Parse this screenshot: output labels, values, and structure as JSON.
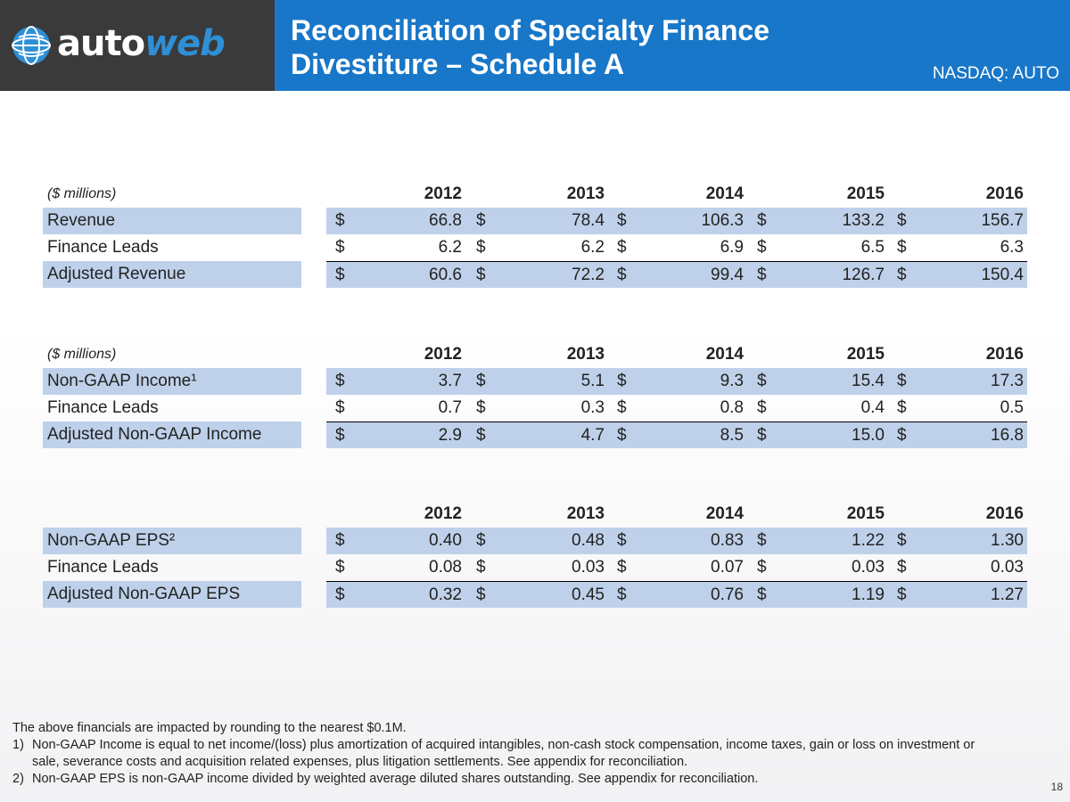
{
  "header": {
    "logo_auto": "auto",
    "logo_web": "web",
    "title_line1": "Reconciliation of Specialty Finance",
    "title_line2": "Divestiture – Schedule A",
    "ticker": "NASDAQ: AUTO"
  },
  "colors": {
    "header_dark": "#3a3a3a",
    "header_blue": "#1877c8",
    "row_shade": "#bfd1ea",
    "logo_accent": "#2e8fd6"
  },
  "years": [
    "2012",
    "2013",
    "2014",
    "2015",
    "2016"
  ],
  "currency_symbol": "$",
  "table1": {
    "unit": "($ millions)",
    "rows": [
      {
        "label": "Revenue",
        "values": [
          "66.8",
          "78.4",
          "106.3",
          "133.2",
          "156.7"
        ]
      },
      {
        "label": "Finance Leads",
        "values": [
          "6.2",
          "6.2",
          "6.9",
          "6.5",
          "6.3"
        ]
      },
      {
        "label": "Adjusted Revenue",
        "values": [
          "60.6",
          "72.2",
          "99.4",
          "126.7",
          "150.4"
        ]
      }
    ]
  },
  "table2": {
    "unit": "($ millions)",
    "rows": [
      {
        "label": "Non-GAAP Income¹",
        "values": [
          "3.7",
          "5.1",
          "9.3",
          "15.4",
          "17.3"
        ]
      },
      {
        "label": "Finance Leads",
        "values": [
          "0.7",
          "0.3",
          "0.8",
          "0.4",
          "0.5"
        ]
      },
      {
        "label": "Adjusted Non-GAAP Income",
        "values": [
          "2.9",
          "4.7",
          "8.5",
          "15.0",
          "16.8"
        ]
      }
    ]
  },
  "table3": {
    "unit": "",
    "rows": [
      {
        "label": "Non-GAAP EPS²",
        "values": [
          "0.40",
          "0.48",
          "0.83",
          "1.22",
          "1.30"
        ]
      },
      {
        "label": "Finance Leads",
        "values": [
          "0.08",
          "0.03",
          "0.07",
          "0.03",
          "0.03"
        ]
      },
      {
        "label": "Adjusted Non-GAAP EPS",
        "values": [
          "0.32",
          "0.45",
          "0.76",
          "1.19",
          "1.27"
        ]
      }
    ]
  },
  "notes": {
    "intro": "The above financials are impacted by rounding to the nearest $0.1M.",
    "items": [
      {
        "num": "1)",
        "text": "Non-GAAP Income is equal to net income/(loss) plus amortization of acquired intangibles, non-cash stock compensation, income taxes, gain or loss on investment or sale, severance costs and acquisition related expenses, plus litigation settlements. See appendix for reconciliation."
      },
      {
        "num": "2)",
        "text": "Non-GAAP EPS is non-GAAP income divided by weighted average diluted shares outstanding. See appendix for reconciliation."
      }
    ]
  },
  "page_number": "18"
}
